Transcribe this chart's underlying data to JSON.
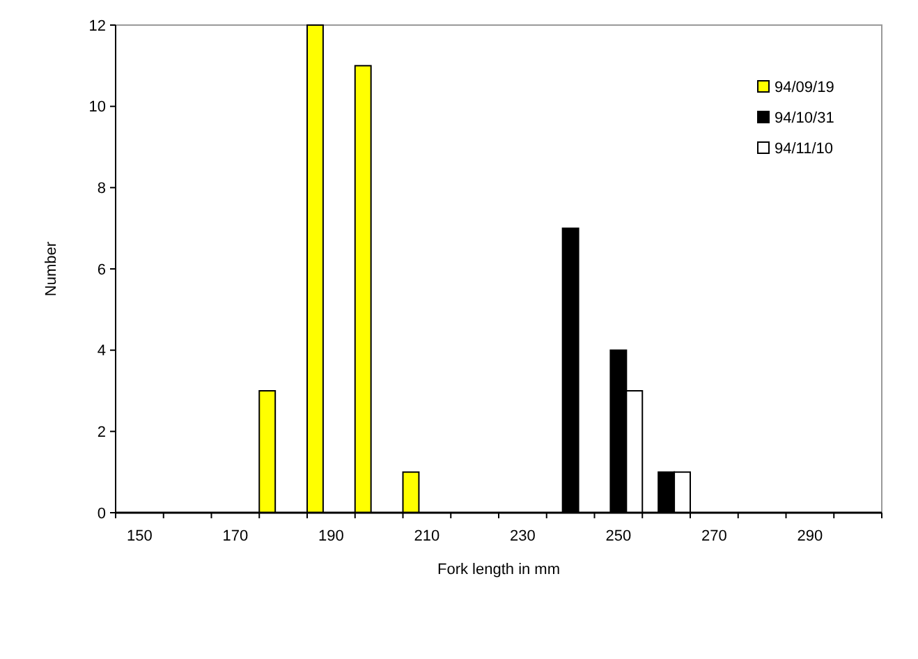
{
  "chart_data": {
    "type": "bar",
    "xlabel": "Fork length in mm",
    "ylabel": "Number",
    "categories": [
      "150",
      null,
      "170",
      null,
      "190",
      null,
      "210",
      null,
      "230",
      null,
      "250",
      null,
      "270",
      null,
      "290",
      null
    ],
    "series": [
      {
        "name": "94/09/19",
        "color": "#ffff00",
        "values": [
          0,
          0,
          0,
          3,
          12,
          11,
          1,
          0,
          0,
          0,
          0,
          0,
          0,
          0,
          0,
          0
        ]
      },
      {
        "name": "94/10/31",
        "color": "#000000",
        "values": [
          0,
          0,
          0,
          0,
          0,
          0,
          0,
          0,
          0,
          7,
          4,
          1,
          0,
          0,
          0,
          0
        ]
      },
      {
        "name": "94/11/10",
        "color": "#ffffff",
        "values": [
          0,
          0,
          0,
          0,
          0,
          0,
          0,
          0,
          0,
          0,
          3,
          1,
          0,
          0,
          0,
          0
        ]
      }
    ],
    "ylim": [
      0,
      12
    ],
    "yticks": [
      0,
      2,
      4,
      6,
      8,
      10,
      12
    ],
    "grid": false,
    "legend": "top right"
  }
}
